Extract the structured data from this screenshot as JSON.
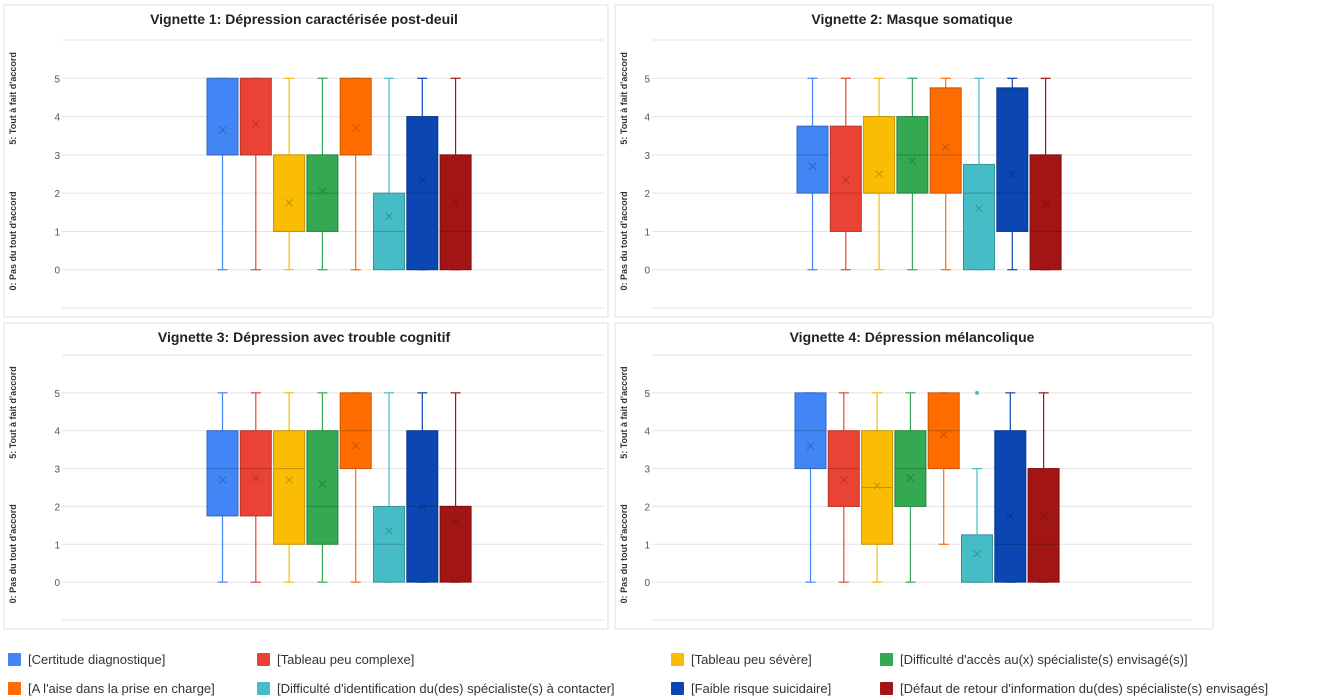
{
  "chart_data": [
    {
      "type": "box",
      "title": "Vignette 1: Dépression caractérisée post-deuil",
      "ylabel_top": "5: Tout à fait d'accord",
      "ylabel_bottom": "0: Pas du tout d'accord",
      "y_ticks": [
        "0",
        "1",
        "2",
        "3",
        "4",
        "5"
      ],
      "ylim": [
        -1,
        6
      ],
      "series": [
        {
          "min": 0,
          "q1": 3,
          "median": 3,
          "q3": 5,
          "max": 5,
          "mean": 3.65
        },
        {
          "min": 0,
          "q1": 3,
          "median": 3,
          "q3": 5,
          "max": 5,
          "mean": 3.8
        },
        {
          "min": 0,
          "q1": 1,
          "median": 1,
          "q3": 3,
          "max": 5,
          "mean": 1.75
        },
        {
          "min": 0,
          "q1": 1,
          "median": 2,
          "q3": 3,
          "max": 5,
          "mean": 2.05
        },
        {
          "min": 0,
          "q1": 3,
          "median": 3,
          "q3": 5,
          "max": 5,
          "mean": 3.7
        },
        {
          "min": 0,
          "q1": 0,
          "median": 1,
          "q3": 2,
          "max": 5,
          "mean": 1.4
        },
        {
          "min": 0,
          "q1": 0,
          "median": 2,
          "q3": 4,
          "max": 5,
          "mean": 2.35
        },
        {
          "min": 0,
          "q1": 0,
          "median": 1,
          "q3": 3,
          "max": 5,
          "mean": 1.75
        }
      ]
    },
    {
      "type": "box",
      "title": "Vignette 2: Masque somatique",
      "ylabel_top": "5: Tout à fait d'accord",
      "ylabel_bottom": "0: Pas du tout d'accord",
      "y_ticks": [
        "0",
        "1",
        "2",
        "3",
        "4",
        "5"
      ],
      "ylim": [
        -1,
        6
      ],
      "series": [
        {
          "min": 0,
          "q1": 2,
          "median": 3,
          "q3": 3.75,
          "max": 5,
          "mean": 2.7
        },
        {
          "min": 0,
          "q1": 1,
          "median": 2,
          "q3": 3.75,
          "max": 5,
          "mean": 2.35
        },
        {
          "min": 0,
          "q1": 2,
          "median": 2,
          "q3": 4,
          "max": 5,
          "mean": 2.5
        },
        {
          "min": 0,
          "q1": 2,
          "median": 3,
          "q3": 4,
          "max": 5,
          "mean": 2.85
        },
        {
          "min": 0,
          "q1": 2,
          "median": 3,
          "q3": 4.75,
          "max": 5,
          "mean": 3.2
        },
        {
          "min": 0,
          "q1": 0,
          "median": 2,
          "q3": 2.75,
          "max": 5,
          "mean": 1.6
        },
        {
          "min": 0,
          "q1": 1,
          "median": 2,
          "q3": 4.75,
          "max": 5,
          "mean": 2.5
        },
        {
          "min": 0,
          "q1": 0,
          "median": 1,
          "q3": 3,
          "max": 5,
          "mean": 1.7
        }
      ]
    },
    {
      "type": "box",
      "title": "Vignette 3: Dépression avec trouble cognitif",
      "ylabel_top": "5: Tout à fait d'accord",
      "ylabel_bottom": "0: Pas du tout d'accord",
      "y_ticks": [
        "0",
        "1",
        "2",
        "3",
        "4",
        "5"
      ],
      "ylim": [
        -1,
        6
      ],
      "series": [
        {
          "min": 0,
          "q1": 1.75,
          "median": 3,
          "q3": 4,
          "max": 5,
          "mean": 2.7
        },
        {
          "min": 0,
          "q1": 1.75,
          "median": 3,
          "q3": 4,
          "max": 5,
          "mean": 2.75
        },
        {
          "min": 0,
          "q1": 1,
          "median": 3,
          "q3": 4,
          "max": 5,
          "mean": 2.7
        },
        {
          "min": 0,
          "q1": 1,
          "median": 2,
          "q3": 4,
          "max": 5,
          "mean": 2.6
        },
        {
          "min": 0,
          "q1": 3,
          "median": 4,
          "q3": 5,
          "max": 5,
          "mean": 3.6
        },
        {
          "min": 0,
          "q1": 0,
          "median": 1,
          "q3": 2,
          "max": 5,
          "mean": 1.35
        },
        {
          "min": 0,
          "q1": 0,
          "median": 2,
          "q3": 4,
          "max": 5,
          "mean": 2.0
        },
        {
          "min": 0,
          "q1": 0,
          "median": 2,
          "q3": 2,
          "max": 5,
          "mean": 1.6
        }
      ]
    },
    {
      "type": "box",
      "title": "Vignette 4: Dépression mélancolique",
      "ylabel_top": "5: Tout à fait d'accord",
      "ylabel_bottom": "0: Pas du tout d'accord",
      "y_ticks": [
        "0",
        "1",
        "2",
        "3",
        "4",
        "5"
      ],
      "ylim": [
        -1,
        6
      ],
      "series": [
        {
          "min": 0,
          "q1": 3,
          "median": 4,
          "q3": 5,
          "max": 5,
          "mean": 3.6
        },
        {
          "min": 0,
          "q1": 2,
          "median": 3,
          "q3": 4,
          "max": 5,
          "mean": 2.7
        },
        {
          "min": 0,
          "q1": 1,
          "median": 2.5,
          "q3": 4,
          "max": 5,
          "mean": 2.55
        },
        {
          "min": 0,
          "q1": 2,
          "median": 3,
          "q3": 4,
          "max": 5,
          "mean": 2.75
        },
        {
          "min": 1,
          "q1": 3,
          "median": 4,
          "q3": 5,
          "max": 5,
          "mean": 3.9
        },
        {
          "min": 0,
          "q1": 0,
          "median": 0,
          "q3": 1.25,
          "max": 3,
          "mean": 0.75,
          "outliers": [
            5
          ]
        },
        {
          "min": 0,
          "q1": 0,
          "median": 1,
          "q3": 4,
          "max": 5,
          "mean": 1.75
        },
        {
          "min": 0,
          "q1": 0,
          "median": 1,
          "q3": 3,
          "max": 5,
          "mean": 1.75
        }
      ]
    }
  ],
  "colors": [
    "#4285f4",
    "#ea4335",
    "#fbbc04",
    "#34a853",
    "#ff6d01",
    "#46bdc6",
    "#0b46b3",
    "#a31515"
  ],
  "legend": {
    "items": [
      {
        "label": "[Certitude diagnostique]",
        "color": "#4285f4"
      },
      {
        "label": "[Tableau peu complexe]",
        "color": "#ea4335"
      },
      {
        "label": "[Tableau peu sévère]",
        "color": "#fbbc04"
      },
      {
        "label": "[Difficulté d'accès au(x) spécialiste(s) envisagé(s)]",
        "color": "#0b46b3"
      },
      {
        "label": "[A l'aise dans la prise en charge]",
        "color": "#ff6d01"
      },
      {
        "label": "[Difficulté d'identification du(des) spécialiste(s) à contacter]",
        "color": "#46bdc6"
      },
      {
        "label": "[Faible risque suicidaire]",
        "color": "#34a853"
      },
      {
        "label": "[Défaut de retour d'information du(des) spécialiste(s) envisagés]",
        "color": "#a31515"
      }
    ]
  }
}
